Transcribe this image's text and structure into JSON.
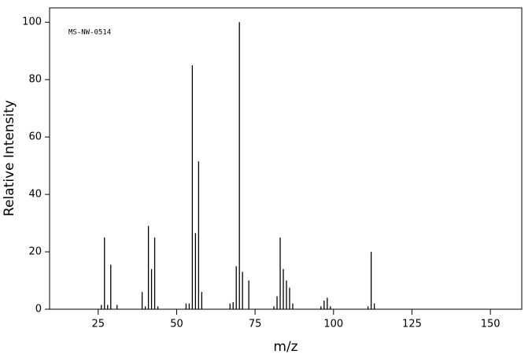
{
  "chart_data": {
    "type": "bar",
    "annotation": "MS-NW-0514",
    "x_label": "m/z",
    "y_label": "Relative Intensity",
    "x": [
      26,
      27,
      28,
      29,
      31,
      39,
      40,
      41,
      42,
      43,
      44,
      53,
      54,
      55,
      56,
      57,
      58,
      67,
      68,
      69,
      70,
      71,
      73,
      81,
      82,
      83,
      84,
      85,
      86,
      87,
      96,
      97,
      98,
      99,
      111,
      112,
      113
    ],
    "values": [
      1.5,
      25,
      1.5,
      15.5,
      1.5,
      6,
      1,
      29,
      14,
      25,
      1,
      2,
      2,
      85,
      26.5,
      51.5,
      6,
      2,
      2.5,
      15,
      100,
      13,
      10,
      1,
      4.5,
      25,
      14,
      10,
      7.5,
      2,
      1,
      3,
      4,
      1,
      1,
      20,
      2
    ],
    "color": "#000000",
    "xlim": [
      9.5,
      160
    ],
    "xticks": [
      25,
      50,
      75,
      100,
      125,
      150
    ],
    "ylim": [
      0,
      105
    ],
    "yticks": [
      0,
      20,
      40,
      60,
      80,
      100
    ]
  }
}
